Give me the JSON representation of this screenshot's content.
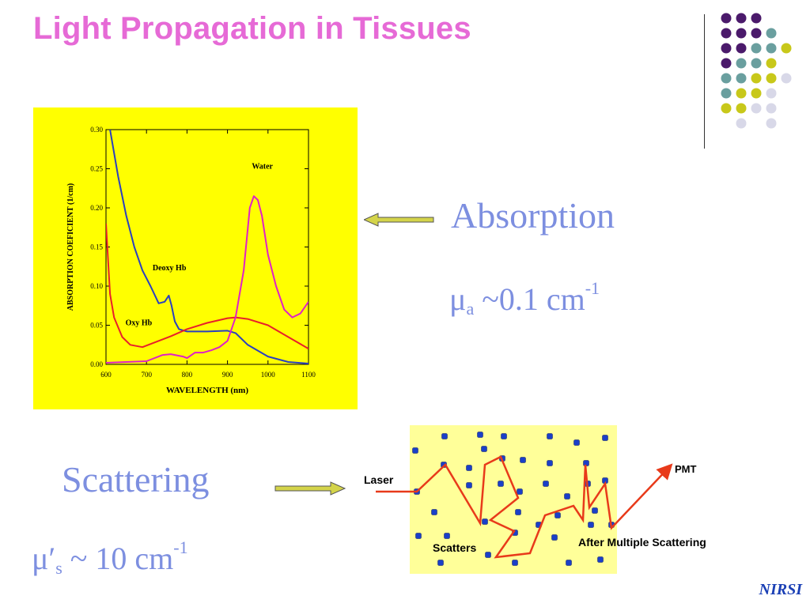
{
  "slide": {
    "title": "Light Propagation in Tissues",
    "footer": "NIRSI"
  },
  "absorption": {
    "label": "Absorption",
    "symbol": "μ",
    "subscript": "a",
    "value": " ~0.1 cm",
    "exponent": "-1"
  },
  "scattering": {
    "label": "Scattering",
    "symbol": "μ",
    "prime": "′",
    "subscript": "s",
    "value": " ~ 10 cm",
    "exponent": "-1"
  },
  "diagram": {
    "laser": "Laser",
    "pmt": "PMT",
    "scatters": "Scatters",
    "after": "After Multiple Scattering"
  },
  "chart_data": {
    "type": "line",
    "xlabel": "WAVELENGTH (nm)",
    "ylabel": "ABSORPTION COEFICIENT (1/cm)",
    "xlim": [
      600,
      1100
    ],
    "ylim": [
      0,
      0.3
    ],
    "x_ticks": [
      "600",
      "700",
      "800",
      "900",
      "1000",
      "1100"
    ],
    "y_ticks": [
      "0.00",
      "0.05",
      "0.10",
      "0.15",
      "0.20",
      "0.25",
      "0.30"
    ],
    "annotations": [
      "Water",
      "Deoxy Hb",
      "Oxy Hb"
    ],
    "series": [
      {
        "name": "Deoxy Hb",
        "color": "#2a3fc0",
        "x": [
          610,
          630,
          650,
          670,
          690,
          710,
          730,
          745,
          755,
          762,
          770,
          780,
          800,
          850,
          900,
          920,
          950,
          1000,
          1050,
          1100
        ],
        "y": [
          0.3,
          0.24,
          0.19,
          0.15,
          0.12,
          0.1,
          0.078,
          0.08,
          0.088,
          0.075,
          0.055,
          0.045,
          0.042,
          0.042,
          0.043,
          0.04,
          0.025,
          0.01,
          0.003,
          0.001
        ]
      },
      {
        "name": "Oxy Hb",
        "color": "#e8202a",
        "x": [
          600,
          610,
          620,
          640,
          660,
          690,
          720,
          760,
          800,
          850,
          900,
          920,
          950,
          1000,
          1050,
          1100
        ],
        "y": [
          0.18,
          0.09,
          0.06,
          0.035,
          0.025,
          0.022,
          0.028,
          0.036,
          0.045,
          0.053,
          0.059,
          0.06,
          0.058,
          0.05,
          0.035,
          0.02
        ]
      },
      {
        "name": "Water",
        "color": "#e020c8",
        "x": [
          600,
          650,
          700,
          740,
          760,
          790,
          800,
          820,
          840,
          860,
          880,
          900,
          920,
          940,
          955,
          965,
          975,
          985,
          1000,
          1020,
          1040,
          1060,
          1080,
          1100
        ],
        "y": [
          0.002,
          0.003,
          0.004,
          0.012,
          0.013,
          0.01,
          0.008,
          0.015,
          0.015,
          0.018,
          0.022,
          0.03,
          0.06,
          0.12,
          0.2,
          0.215,
          0.21,
          0.19,
          0.14,
          0.1,
          0.07,
          0.06,
          0.065,
          0.08
        ]
      }
    ]
  }
}
